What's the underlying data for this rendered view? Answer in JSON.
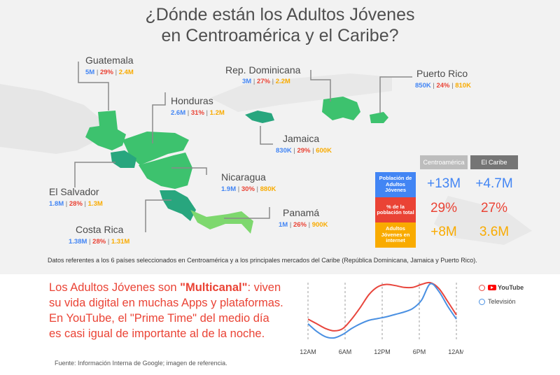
{
  "title": {
    "line1": "¿Dónde están los Adultos Jóvenes",
    "line2": "en Centroamérica y el Caribe?"
  },
  "countries": [
    {
      "name": "Guatemala",
      "pop": "5M",
      "pct": "29%",
      "internet": "2.4M"
    },
    {
      "name": "Honduras",
      "pop": "2.6M",
      "pct": "31%",
      "internet": "1.2M"
    },
    {
      "name": "El Salvador",
      "pop": "1.8M",
      "pct": "28%",
      "internet": "1.3M"
    },
    {
      "name": "Nicaragua",
      "pop": "1.9M",
      "pct": "30%",
      "internet": "880K"
    },
    {
      "name": "Costa Rica",
      "pop": "1.38M",
      "pct": "28%",
      "internet": "1.31M"
    },
    {
      "name": "Panamá",
      "pop": "1M",
      "pct": "26%",
      "internet": "900K"
    },
    {
      "name": "Rep. Dominicana",
      "pop": "3M",
      "pct": "27%",
      "internet": "2.2M"
    },
    {
      "name": "Puerto Rico",
      "pop": "850K",
      "pct": "24%",
      "internet": "810K"
    },
    {
      "name": "Jamaica",
      "pop": "830K",
      "pct": "29%",
      "internet": "600K"
    }
  ],
  "separator": "|",
  "table": {
    "headers": [
      "Centroamérica",
      "El Caribe"
    ],
    "rows": [
      {
        "label": "Población de Adultos Jóvenes",
        "color": "#4285f4",
        "values": [
          "+13M",
          "+4.7M"
        ]
      },
      {
        "label": "% de la población total",
        "color": "#ea4335",
        "values": [
          "29%",
          "27%"
        ]
      },
      {
        "label": "Adultos Jóvenes en internet",
        "color": "#f9ab00",
        "values": [
          "+8M",
          "3.6M"
        ]
      }
    ]
  },
  "note": "Datos referentes a los 6 países seleccionados en Centroamérica y a los principales mercados del Caribe (República Dominicana, Jamaica y Puerto Rico).",
  "bottom": {
    "pre": "Los Adultos Jóvenes son ",
    "bold": "\"Multicanal\"",
    "post": ": viven su vida digital en muchas Apps y plataformas. En YouTube, el \"Prime Time\" del medio día es casi igual de importante al de la noche."
  },
  "source": "Fuente: Información Interna de Google; imagen de referencia.",
  "chart_data": {
    "type": "line",
    "x_ticks": [
      "12AM",
      "6AM",
      "12PM",
      "6PM",
      "12AM"
    ],
    "series": [
      {
        "name": "YouTube",
        "color": "#e8453c",
        "values": [
          0.38,
          0.3,
          0.22,
          0.18,
          0.22,
          0.38,
          0.58,
          0.8,
          0.93,
          0.97,
          0.95,
          0.92,
          0.92,
          0.97,
          1.0,
          0.9,
          0.68,
          0.45
        ]
      },
      {
        "name": "Televisión",
        "color": "#4a90e2",
        "values": [
          0.3,
          0.17,
          0.08,
          0.06,
          0.12,
          0.22,
          0.3,
          0.36,
          0.39,
          0.42,
          0.46,
          0.5,
          0.56,
          0.7,
          0.98,
          0.85,
          0.6,
          0.38
        ]
      }
    ],
    "legend_position": "right"
  },
  "legend": {
    "youtube_logo": "YouTube",
    "tv": "Televisión"
  },
  "colors": {
    "title": "#4f4f4f",
    "land_green": "#3dc26e",
    "land_light": "#7ed86e",
    "teal": "#28a67e",
    "accent_red": "#ea4335"
  }
}
